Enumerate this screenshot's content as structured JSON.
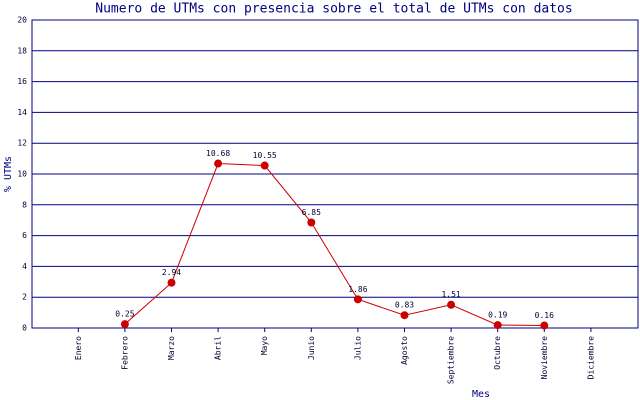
{
  "chart_data": {
    "type": "line",
    "title": "Numero de UTMs con presencia sobre el total de UTMs con datos",
    "x_label": "Mes",
    "y_label": "% UTMs",
    "categories": [
      "Enero",
      "Febrero",
      "Marzo",
      "Abril",
      "Mayo",
      "Junio",
      "Julio",
      "Agosto",
      "Septiembre",
      "Octubre",
      "Noviembre",
      "Diciembre"
    ],
    "values": [
      null,
      0.25,
      2.94,
      10.68,
      10.55,
      6.85,
      1.86,
      0.83,
      1.51,
      0.19,
      0.16,
      null
    ],
    "color": "#cc0000",
    "ylim": [
      0,
      20
    ],
    "yticks": [
      0,
      2,
      4,
      6,
      8,
      10,
      12,
      14,
      16,
      18,
      20
    ],
    "grid": true
  }
}
